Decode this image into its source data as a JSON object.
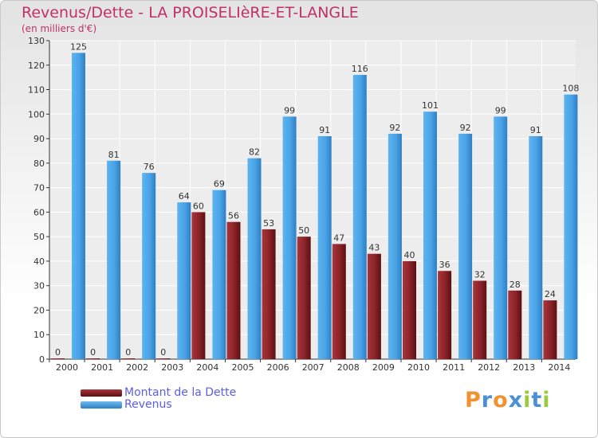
{
  "title": "Revenus/Dette - LA PROISELIèRE-ET-LANGLE",
  "subtitle": "(en milliers d'€)",
  "colors": {
    "dette": "#7a1a1f",
    "revenus": "#4aa3e6",
    "title": "#c0306b",
    "legend_text": "#5a5ee8"
  },
  "brand": {
    "letters": [
      "P",
      "r",
      "o",
      "x",
      "i",
      "t",
      "i"
    ],
    "colors": [
      "#f0922f",
      "#4b8fd4",
      "#f0922f",
      "#4b8fd4",
      "#9bcb3c",
      "#4b8fd4",
      "#9bcb3c"
    ]
  },
  "legend": [
    {
      "label": "Montant de la Dette",
      "color": "#7a1a1f"
    },
    {
      "label": "Revenus",
      "color": "#4aa3e6"
    }
  ],
  "chart_data": {
    "type": "bar",
    "title": "Revenus/Dette - LA PROISELIèRE-ET-LANGLE",
    "ylabel": "(en milliers d'€)",
    "categories": [
      "2000",
      "2001",
      "2002",
      "2003",
      "2004",
      "2005",
      "2006",
      "2007",
      "2008",
      "2009",
      "2010",
      "2011",
      "2012",
      "2013",
      "2014"
    ],
    "series": [
      {
        "name": "Montant de la Dette",
        "values": [
          0,
          0,
          0,
          0,
          60,
          56,
          53,
          50,
          47,
          43,
          40,
          36,
          32,
          28,
          24
        ]
      },
      {
        "name": "Revenus",
        "values": [
          125,
          81,
          76,
          64,
          69,
          82,
          99,
          91,
          116,
          92,
          101,
          92,
          99,
          91,
          108
        ]
      }
    ],
    "ylim": [
      0,
      130
    ],
    "yticks": [
      0,
      10,
      20,
      30,
      40,
      50,
      60,
      70,
      80,
      90,
      100,
      110,
      120,
      130
    ],
    "grid": true,
    "legend_position": "bottom-left"
  }
}
